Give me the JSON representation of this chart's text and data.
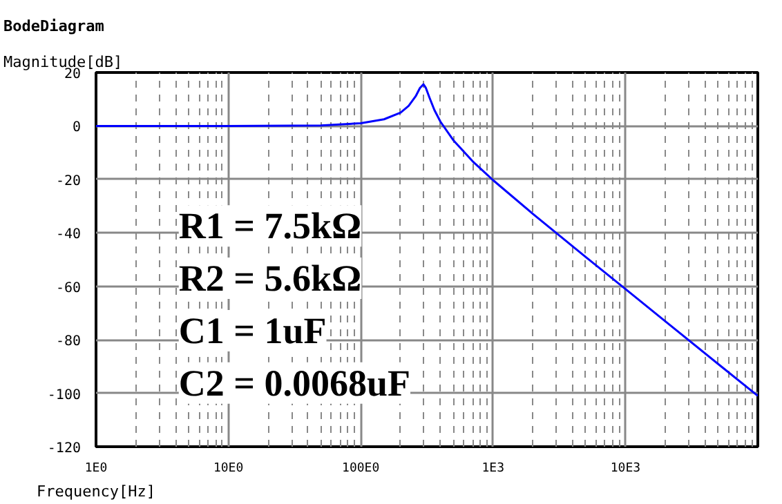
{
  "chart_data": {
    "type": "line",
    "title": "BodeDiagram",
    "xlabel": "Frequency[Hz]",
    "ylabel": "Magnitude[dB]",
    "x": [
      1,
      10,
      50,
      100,
      150,
      200,
      230,
      260,
      280,
      297.8,
      310,
      330,
      360,
      400,
      500,
      700,
      1000,
      2000,
      5000,
      10000,
      20000,
      50000,
      100000
    ],
    "series": [
      {
        "color": "#0000ff",
        "values": [
          0,
          0,
          0.2,
          1.0,
          2.5,
          5.0,
          7.5,
          11.1,
          14.2,
          15.6,
          14.3,
          10.7,
          6.0,
          1.6,
          -5.3,
          -13.2,
          -20.3,
          -32.9,
          -49.0,
          -61.0,
          -73.1,
          -89.0,
          -101.0
        ]
      }
    ],
    "log": "x",
    "xlim": [
      1,
      100000
    ],
    "ylim": [
      -120,
      20
    ],
    "xticks": [
      {
        "value": 1,
        "label": "1E0"
      },
      {
        "value": 2,
        "label": null
      },
      {
        "value": 3,
        "label": null
      },
      {
        "value": 4,
        "label": null
      },
      {
        "value": 5,
        "label": null
      },
      {
        "value": 6,
        "label": null
      },
      {
        "value": 7,
        "label": null
      },
      {
        "value": 8,
        "label": null
      },
      {
        "value": 9,
        "label": null
      },
      {
        "value": 10,
        "label": "10E0"
      },
      {
        "value": 20,
        "label": null
      },
      {
        "value": 30,
        "label": null
      },
      {
        "value": 40,
        "label": null
      },
      {
        "value": 50,
        "label": null
      },
      {
        "value": 60,
        "label": null
      },
      {
        "value": 70,
        "label": null
      },
      {
        "value": 80,
        "label": null
      },
      {
        "value": 90,
        "label": null
      },
      {
        "value": 100,
        "label": "100E0"
      },
      {
        "value": 200,
        "label": null
      },
      {
        "value": 300,
        "label": null
      },
      {
        "value": 400,
        "label": null
      },
      {
        "value": 500,
        "label": null
      },
      {
        "value": 600,
        "label": null
      },
      {
        "value": 700,
        "label": null
      },
      {
        "value": 800,
        "label": null
      },
      {
        "value": 900,
        "label": null
      },
      {
        "value": 1000,
        "label": "1E3"
      },
      {
        "value": 2000,
        "label": null
      },
      {
        "value": 3000,
        "label": null
      },
      {
        "value": 4000,
        "label": null
      },
      {
        "value": 5000,
        "label": null
      },
      {
        "value": 6000,
        "label": null
      },
      {
        "value": 7000,
        "label": null
      },
      {
        "value": 8000,
        "label": null
      },
      {
        "value": 9000,
        "label": null
      },
      {
        "value": 10000,
        "label": "10E3"
      },
      {
        "value": 20000,
        "label": null
      },
      {
        "value": 30000,
        "label": null
      },
      {
        "value": 40000,
        "label": null
      },
      {
        "value": 50000,
        "label": null
      },
      {
        "value": 60000,
        "label": null
      },
      {
        "value": 70000,
        "label": null
      },
      {
        "value": 80000,
        "label": null
      },
      {
        "value": 90000,
        "label": null
      }
    ],
    "yticks": [
      20,
      0,
      -20,
      -40,
      -60,
      -80,
      -100,
      -120
    ],
    "grid": true,
    "marker": "none",
    "line_style": "solid",
    "annotations": [
      "R1 = 7.5kΩ",
      "R2 = 5.6kΩ",
      "C1 = 1uF",
      "C2 = 0.0068uF"
    ]
  }
}
